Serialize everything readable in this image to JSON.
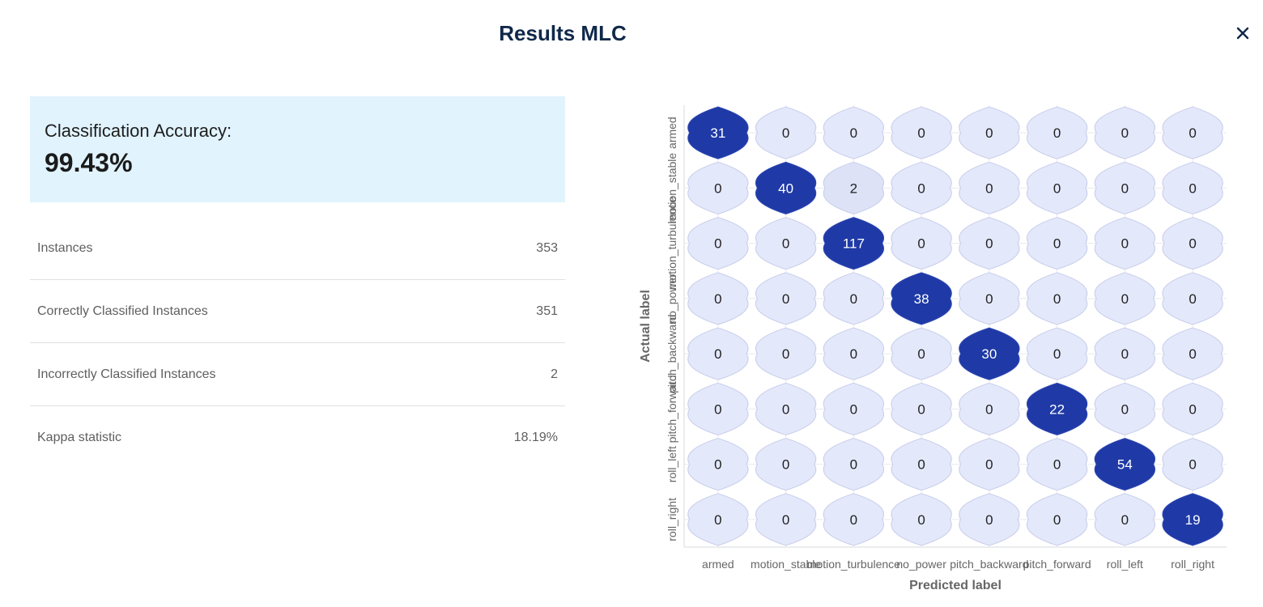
{
  "title": "Results MLC",
  "close_icon": "close-icon",
  "accuracy": {
    "label": "Classification Accuracy:",
    "value": "99.43%"
  },
  "stats": [
    {
      "label": "Instances",
      "value": "353"
    },
    {
      "label": "Correctly Classified Instances",
      "value": "351"
    },
    {
      "label": "Incorrectly Classified Instances",
      "value": "2"
    },
    {
      "label": "Kappa statistic",
      "value": "18.19%"
    }
  ],
  "chart_data": {
    "type": "heatmap",
    "title": "",
    "xlabel": "Predicted label",
    "ylabel": "Actual label",
    "x_categories": [
      "armed",
      "motion_stable",
      "motion_turbulence",
      "no_power",
      "pitch_backward",
      "pitch_forward",
      "roll_left",
      "roll_right"
    ],
    "y_categories": [
      "armed",
      "motion_stable",
      "motion_turbulence",
      "no_power",
      "pitch_backward",
      "pitch_forward",
      "roll_left",
      "roll_right"
    ],
    "values": [
      [
        31,
        0,
        0,
        0,
        0,
        0,
        0,
        0
      ],
      [
        0,
        40,
        2,
        0,
        0,
        0,
        0,
        0
      ],
      [
        0,
        0,
        117,
        0,
        0,
        0,
        0,
        0
      ],
      [
        0,
        0,
        0,
        38,
        0,
        0,
        0,
        0
      ],
      [
        0,
        0,
        0,
        0,
        30,
        0,
        0,
        0
      ],
      [
        0,
        0,
        0,
        0,
        0,
        22,
        0,
        0
      ],
      [
        0,
        0,
        0,
        0,
        0,
        0,
        54,
        0
      ],
      [
        0,
        0,
        0,
        0,
        0,
        0,
        0,
        19
      ]
    ],
    "colors": {
      "high": "#1f3aa6",
      "low": "#e4e8fb",
      "mid": "#dde2f7"
    }
  }
}
